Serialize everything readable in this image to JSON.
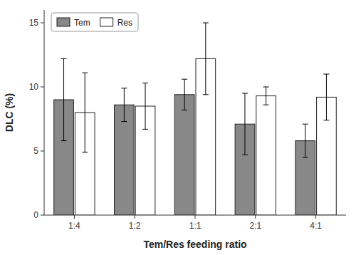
{
  "chart_data": {
    "type": "bar",
    "categories": [
      "1:4",
      "1:2",
      "1:1",
      "2:1",
      "4:1"
    ],
    "series": [
      {
        "name": "Tem",
        "color": "#888888",
        "values": [
          9.0,
          8.6,
          9.4,
          7.1,
          5.8
        ],
        "errors": [
          3.2,
          1.3,
          1.2,
          2.4,
          1.3
        ]
      },
      {
        "name": "Res",
        "color": "#ffffff",
        "values": [
          8.0,
          8.5,
          12.2,
          9.3,
          9.2
        ],
        "errors": [
          3.1,
          1.8,
          2.8,
          0.7,
          1.8
        ]
      }
    ],
    "xlabel": "Tem/Res feeding ratio",
    "ylabel": "DLC (%)",
    "ylim": [
      0,
      16
    ],
    "yticks": [
      0,
      5,
      10,
      15
    ],
    "grid": false,
    "legend": "upper left"
  }
}
